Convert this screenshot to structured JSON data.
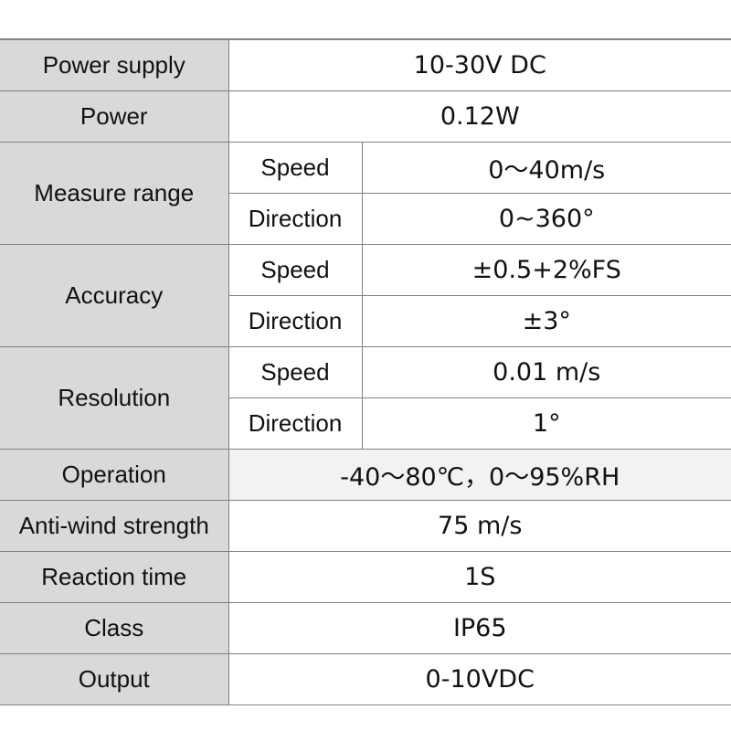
{
  "table": {
    "rows": [
      {
        "label": "Power supply",
        "value": "10-30V DC"
      },
      {
        "label": "Power",
        "value": "0.12W"
      },
      {
        "label": "Measure range",
        "sub": [
          {
            "label": "Speed",
            "value": "0～40m/s"
          },
          {
            "label": "Direction",
            "value": "0~360°"
          }
        ]
      },
      {
        "label": "Accuracy",
        "sub": [
          {
            "label": "Speed",
            "value": "±0.5+2%FS"
          },
          {
            "label": "Direction",
            "value": "±3°"
          }
        ]
      },
      {
        "label": "Resolution",
        "sub": [
          {
            "label": "Speed",
            "value": "0.01 m/s"
          },
          {
            "label": "Direction",
            "value": "1°"
          }
        ]
      },
      {
        "label": "Operation",
        "value": "-40～80℃，0～95%RH"
      },
      {
        "label": "Anti-wind strength",
        "value": "75 m/s"
      },
      {
        "label": "Reaction time",
        "value": "1S"
      },
      {
        "label": "Class",
        "value": "IP65"
      },
      {
        "label": "Output",
        "value": "0-10VDC"
      }
    ]
  }
}
